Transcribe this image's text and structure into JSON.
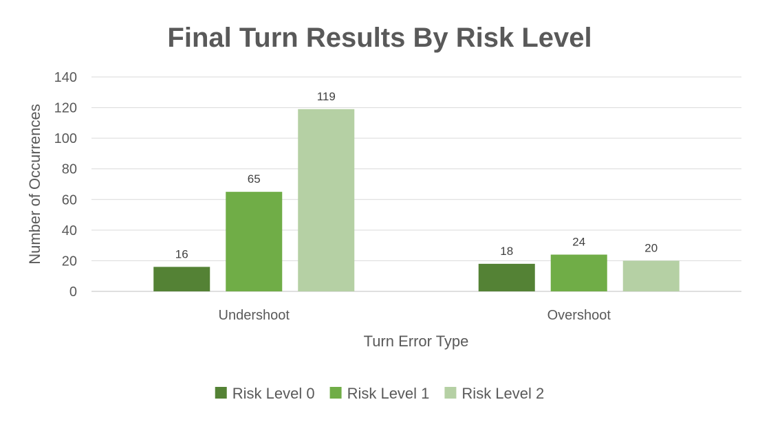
{
  "chart_data": {
    "type": "bar",
    "title": "Final Turn Results By Risk Level",
    "xlabel": "Turn Error Type",
    "ylabel": "Number of Occurrences",
    "ylim": [
      0,
      140
    ],
    "yticks": [
      "0",
      "20",
      "40",
      "60",
      "80",
      "100",
      "120",
      "140"
    ],
    "categories": [
      "Undershoot",
      "Overshoot"
    ],
    "series": [
      {
        "name": "Risk Level 0",
        "values": [
          16,
          18
        ],
        "color": "#548235"
      },
      {
        "name": "Risk Level 1",
        "values": [
          65,
          24
        ],
        "color": "#70AD47"
      },
      {
        "name": "Risk Level 2",
        "values": [
          119,
          20
        ],
        "color": "#B5D0A4"
      }
    ],
    "grid": true,
    "legend": "bottom",
    "data_labels": true
  }
}
